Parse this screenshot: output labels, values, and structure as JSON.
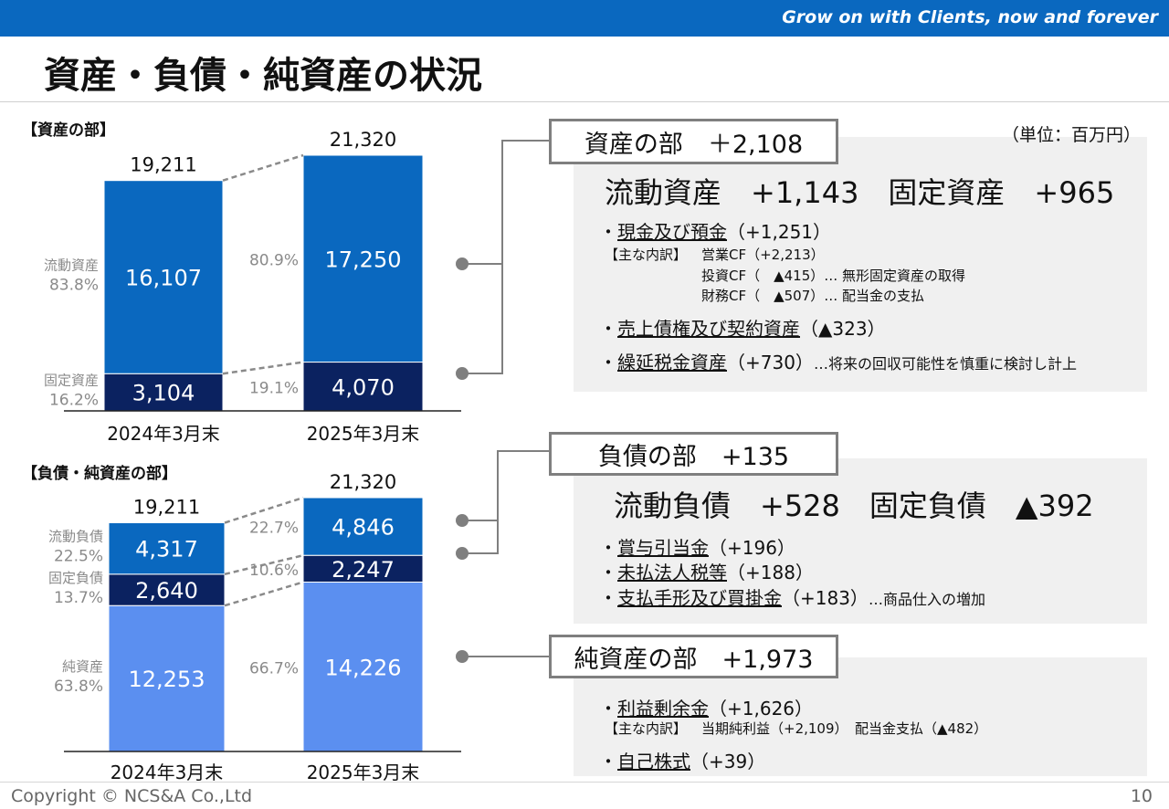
{
  "header": {
    "slogan": "Grow on with Clients, now and forever"
  },
  "page": {
    "title": "資産・負債・純資産の状況",
    "unit": "（単位：百万円）",
    "page_number": "10",
    "copyright": "Copyright © NCS&A Co.,Ltd"
  },
  "chart_data": [
    {
      "type": "bar",
      "title": "【資産の部】",
      "categories": [
        "2024年3月末",
        "2025年3月末"
      ],
      "totals": [
        19211,
        21320
      ],
      "totals_labels": [
        "19,211",
        "21,320"
      ],
      "series": [
        {
          "name": "流動資産",
          "values": [
            16107,
            17250
          ],
          "labels": [
            "16,107",
            "17,250"
          ],
          "pct": [
            "83.8%",
            "80.9%"
          ],
          "color": "#0a68bf"
        },
        {
          "name": "固定資産",
          "values": [
            3104,
            4070
          ],
          "labels": [
            "3,104",
            "4,070"
          ],
          "pct": [
            "16.2%",
            "19.1%"
          ],
          "color": "#0b2260"
        }
      ]
    },
    {
      "type": "bar",
      "title": "【負債・純資産の部】",
      "categories": [
        "2024年3月末",
        "2025年3月末"
      ],
      "totals": [
        19211,
        21320
      ],
      "totals_labels": [
        "19,211",
        "21,320"
      ],
      "series": [
        {
          "name": "流動負債",
          "values": [
            4317,
            4846
          ],
          "labels": [
            "4,317",
            "4,846"
          ],
          "pct": [
            "22.5%",
            "22.7%"
          ],
          "color": "#0a68bf"
        },
        {
          "name": "固定負債",
          "values": [
            2640,
            2247
          ],
          "labels": [
            "2,640",
            "2,247"
          ],
          "pct": [
            "13.7%",
            "10.6%"
          ],
          "color": "#0b2260"
        },
        {
          "name": "純資産",
          "values": [
            12253,
            14226
          ],
          "labels": [
            "12,253",
            "14,226"
          ],
          "pct": [
            "63.8%",
            "66.7%"
          ],
          "color": "#5b8ff0"
        }
      ]
    }
  ],
  "panels": {
    "assets": {
      "tag": "資産の部　＋2,108",
      "headline": "流動資産　+1,143　固定資産　+965",
      "items": [
        {
          "label": "現金及び預金",
          "value": "（+1,251）",
          "note": ""
        },
        {
          "label": "売上債権及び契約資産",
          "value": "（▲323）",
          "note": ""
        },
        {
          "label": "繰延税金資産",
          "value": "（+730）",
          "note": "…将来の回収可能性を慎重に検討し計上"
        }
      ],
      "breakdown_title": "【主な内訳】",
      "breakdown": [
        "営業CF（+2,213）",
        "投資CF（　▲415）… 無形固定資産の取得",
        "財務CF（　▲507）… 配当金の支払"
      ]
    },
    "liabilities": {
      "tag": "負債の部　+135",
      "headline": "流動負債　+528　固定負債　▲392",
      "items": [
        {
          "label": "賞与引当金",
          "value": "（+196）",
          "note": ""
        },
        {
          "label": "未払法人税等",
          "value": "（+188）",
          "note": ""
        },
        {
          "label": "支払手形及び買掛金",
          "value": "（+183）",
          "note": "…商品仕入の増加"
        }
      ]
    },
    "net_assets": {
      "tag": "純資産の部　+1,973",
      "items": [
        {
          "label": "利益剰余金",
          "value": "（+1,626）",
          "note": ""
        },
        {
          "label": "自己株式",
          "value": "（+39）",
          "note": ""
        }
      ],
      "breakdown_title": "【主な内訳】",
      "breakdown_text": "当期純利益（+2,109）　配当金支払（▲482）"
    }
  }
}
